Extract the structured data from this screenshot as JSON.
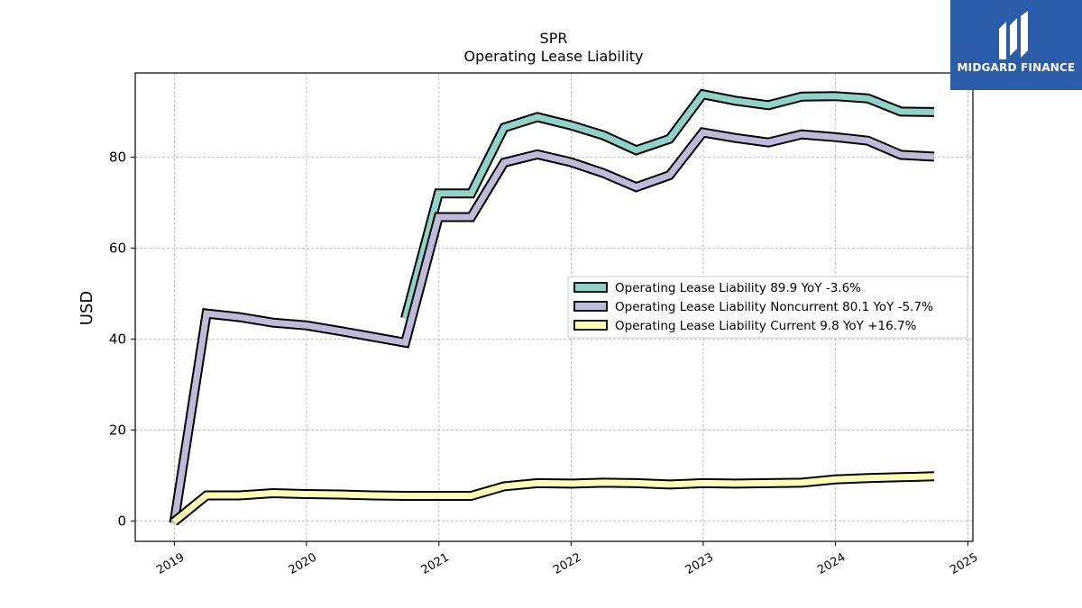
{
  "chart_data": {
    "type": "line",
    "title": "SPR",
    "subtitle": "Operating Lease Liability",
    "ylabel": "USD",
    "xlabel": "",
    "xlim": [
      "2018-09-15",
      "2025-01-15"
    ],
    "ylim": [
      -4.5,
      98.5
    ],
    "yticks": [
      0,
      20,
      40,
      60,
      80
    ],
    "xticks": [
      "2019",
      "2020",
      "2021",
      "2022",
      "2023",
      "2024",
      "2025"
    ],
    "grid": true,
    "legend_position": "center-right",
    "series": [
      {
        "name": "Operating Lease Liability",
        "legend": "Operating Lease Liability  89.9 YoY -3.6%",
        "color": "#8dd3c7",
        "x": [
          "2020-09-30",
          "2020-12-31",
          "2021-03-31",
          "2021-06-30",
          "2021-09-30",
          "2021-12-31",
          "2022-03-31",
          "2022-06-30",
          "2022-09-30",
          "2022-12-31",
          "2023-03-31",
          "2023-06-30",
          "2023-09-30",
          "2023-12-31",
          "2024-03-31",
          "2024-06-30",
          "2024-09-30"
        ],
        "values": [
          44.5,
          72.0,
          72.0,
          86.5,
          88.8,
          87.0,
          84.8,
          81.5,
          84.0,
          93.8,
          92.4,
          91.4,
          93.3,
          93.4,
          92.9,
          90.0,
          89.9
        ]
      },
      {
        "name": "Operating Lease Liability Noncurrent",
        "legend": "Operating Lease Liability Noncurrent  80.1 YoY -5.7%",
        "color": "#bebada",
        "x": [
          "2018-12-31",
          "2019-03-31",
          "2019-06-30",
          "2019-09-30",
          "2019-12-31",
          "2020-03-31",
          "2020-06-30",
          "2020-09-30",
          "2020-12-31",
          "2021-03-31",
          "2021-06-30",
          "2021-09-30",
          "2021-12-31",
          "2022-03-31",
          "2022-06-30",
          "2022-09-30",
          "2022-12-31",
          "2023-03-31",
          "2023-06-30",
          "2023-09-30",
          "2023-12-31",
          "2024-03-31",
          "2024-06-30",
          "2024-09-30"
        ],
        "values": [
          -0.5,
          45.6,
          44.8,
          43.6,
          43.0,
          41.8,
          40.5,
          39.2,
          66.8,
          66.8,
          78.8,
          80.6,
          78.9,
          76.5,
          73.4,
          76.0,
          85.4,
          84.2,
          83.2,
          85.0,
          84.4,
          83.6,
          80.5,
          80.1
        ]
      },
      {
        "name": "Operating Lease Liability Current",
        "legend": "Operating Lease Liability Current  9.8 YoY +16.7%",
        "color": "#ffffb3",
        "x": [
          "2018-12-31",
          "2019-03-31",
          "2019-06-30",
          "2019-09-30",
          "2019-12-31",
          "2020-03-31",
          "2020-06-30",
          "2020-09-30",
          "2020-12-31",
          "2021-03-31",
          "2021-06-30",
          "2021-09-30",
          "2021-12-31",
          "2022-03-31",
          "2022-06-30",
          "2022-09-30",
          "2022-12-31",
          "2023-03-31",
          "2023-06-30",
          "2023-09-30",
          "2023-12-31",
          "2024-03-31",
          "2024-06-30",
          "2024-09-30"
        ],
        "values": [
          -0.2,
          5.6,
          5.6,
          6.1,
          5.9,
          5.8,
          5.6,
          5.5,
          5.5,
          5.5,
          7.6,
          8.3,
          8.2,
          8.4,
          8.3,
          8.0,
          8.3,
          8.2,
          8.3,
          8.4,
          9.1,
          9.4,
          9.6,
          9.8
        ]
      }
    ]
  },
  "logo": {
    "text": "MIDGARD FINANCE",
    "bg_color": "#2a5caa"
  }
}
